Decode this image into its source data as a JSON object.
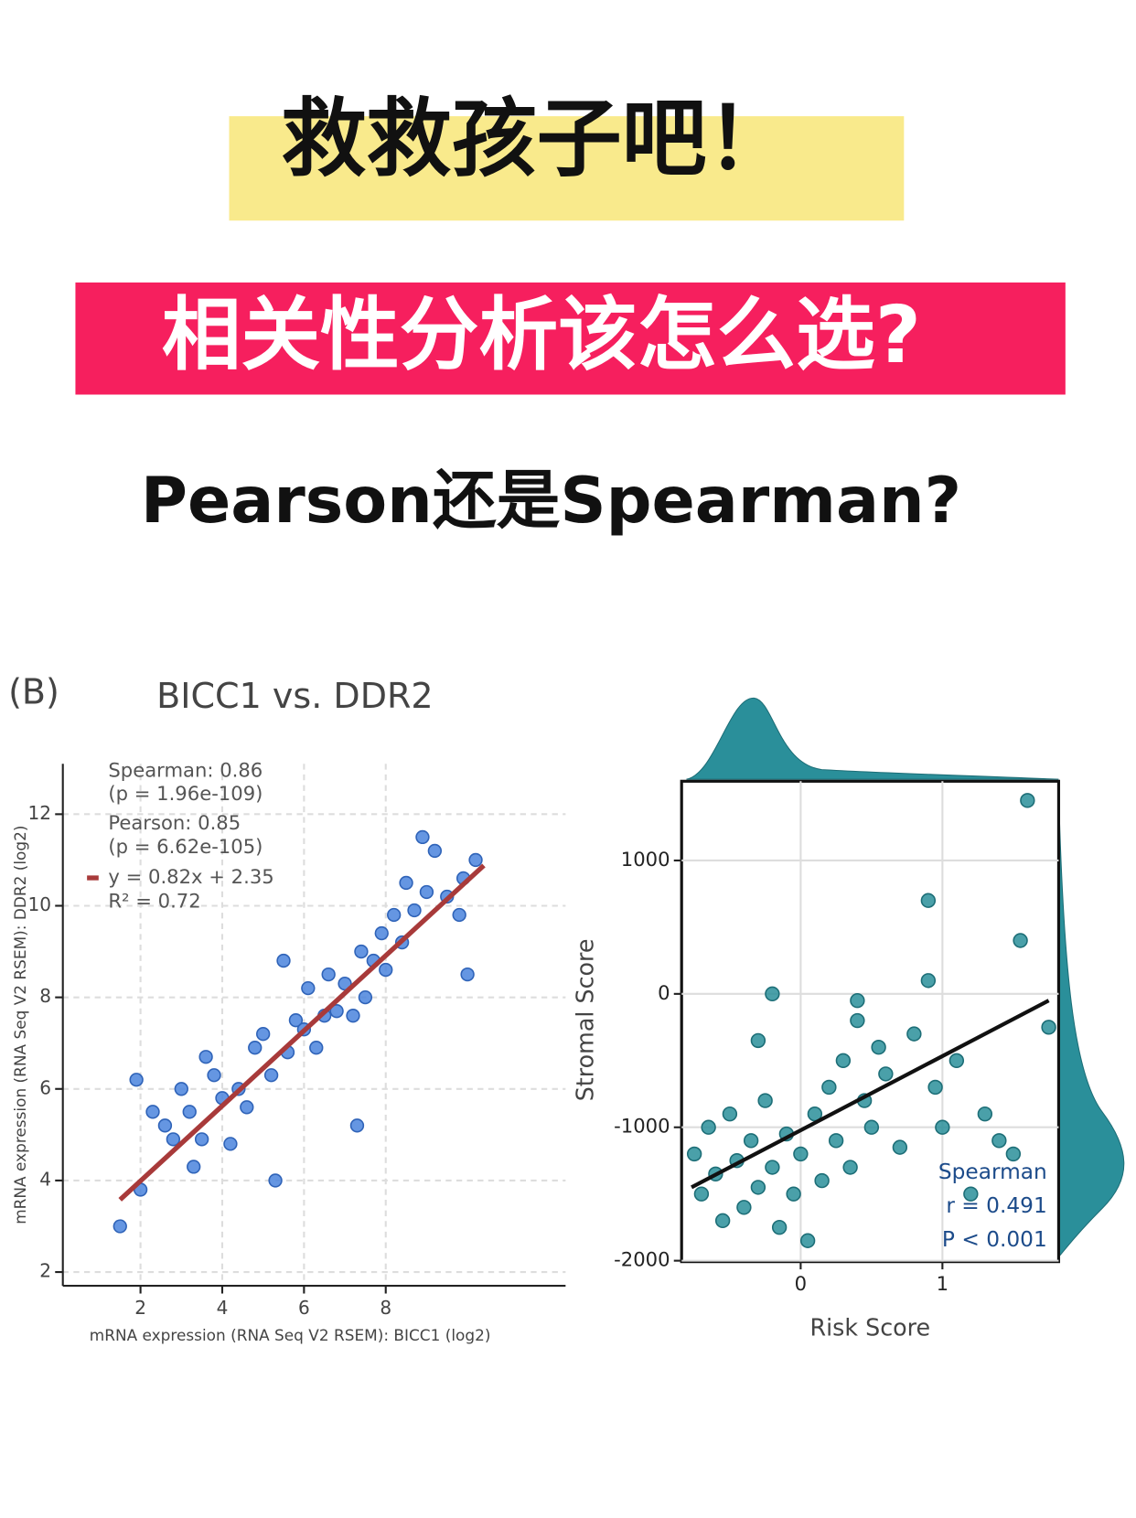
{
  "header": {
    "title": "救救孩子吧！",
    "subtitle": "相关性分析该怎么选?",
    "question": "Pearson还是Spearman?"
  },
  "chart_data": [
    {
      "type": "scatter",
      "panel": "(B)",
      "title": "BICC1 vs. DDR2",
      "x_label": "mRNA expression (RNA Seq V2 RSEM): BICC1 (log2)",
      "y_label": "mRNA expression (RNA Seq V2 RSEM): DDR2 (log2)",
      "annotations": [
        "Spearman: 0.86",
        "(p = 1.96e-109)",
        "Pearson: 0.85",
        "(p = 6.62e-105)",
        "y = 0.82x + 2.35",
        "R² = 0.72"
      ],
      "color": "#4a84dd",
      "x": [
        1.5,
        1.9,
        2.0,
        2.3,
        2.6,
        2.8,
        3.0,
        3.2,
        3.3,
        3.5,
        3.6,
        3.8,
        4.0,
        4.2,
        4.4,
        4.6,
        4.8,
        5.0,
        5.2,
        5.3,
        5.5,
        5.6,
        5.8,
        6.0,
        6.1,
        6.3,
        6.5,
        6.6,
        6.8,
        7.0,
        7.2,
        7.4,
        7.5,
        7.7,
        7.9,
        8.0,
        8.2,
        8.4,
        8.5,
        8.7,
        8.9,
        9.0,
        9.2,
        9.5,
        9.8,
        10.2,
        10.0,
        9.9,
        7.3
      ],
      "values": [
        3.0,
        6.2,
        3.8,
        5.5,
        5.2,
        4.9,
        6.0,
        5.5,
        4.3,
        4.9,
        6.7,
        6.3,
        5.8,
        4.8,
        6.0,
        5.6,
        6.9,
        7.2,
        6.3,
        4.0,
        8.8,
        6.8,
        7.5,
        7.3,
        8.2,
        6.9,
        7.6,
        8.5,
        7.7,
        8.3,
        7.6,
        9.0,
        8.0,
        8.8,
        9.4,
        8.6,
        9.8,
        9.2,
        10.5,
        9.9,
        11.5,
        10.3,
        11.2,
        10.2,
        9.8,
        11.0,
        8.5,
        10.6,
        5.2
      ],
      "fit": {
        "color": "#a83a3a",
        "x": [
          1.5,
          10.4
        ],
        "values": [
          3.58,
          10.88
        ]
      },
      "xlim": [
        0.1,
        12.4
      ],
      "xticks": [
        2,
        4,
        6,
        8
      ],
      "ylim": [
        1.7,
        13.1
      ],
      "yticks": [
        2,
        4,
        6,
        8,
        10,
        12
      ],
      "grid": true
    },
    {
      "type": "scatter",
      "title": null,
      "x_label": "Risk Score",
      "y_label": "Stromal Score",
      "annotations": [
        "Spearman",
        "r = 0.491",
        "P < 0.001"
      ],
      "color": "#2a8f9a",
      "x": [
        -0.75,
        -0.7,
        -0.65,
        -0.6,
        -0.55,
        -0.5,
        -0.45,
        -0.4,
        -0.35,
        -0.3,
        -0.25,
        -0.2,
        -0.15,
        -0.1,
        -0.05,
        0.0,
        0.05,
        0.1,
        0.15,
        0.2,
        0.25,
        0.3,
        0.35,
        0.4,
        0.45,
        0.5,
        0.55,
        0.6,
        0.7,
        0.8,
        0.9,
        0.95,
        1.0,
        1.1,
        1.2,
        1.3,
        1.4,
        1.5,
        1.55,
        1.6,
        1.75,
        -0.3,
        -0.2,
        0.4,
        0.9
      ],
      "values": [
        -1200,
        -1500,
        -1000,
        -1350,
        -1700,
        -900,
        -1250,
        -1600,
        -1100,
        -1450,
        -800,
        -1300,
        -1750,
        -1050,
        -1500,
        -1200,
        -1850,
        -900,
        -1400,
        -700,
        -1100,
        -500,
        -1300,
        -200,
        -800,
        -1000,
        -400,
        -600,
        -1150,
        -300,
        100,
        -700,
        -1000,
        -500,
        -1500,
        -900,
        -1100,
        -1200,
        400,
        1450,
        -250,
        -350,
        0,
        -50,
        700
      ],
      "fit": {
        "color": "#111111",
        "x": [
          -0.77,
          1.75
        ],
        "values": [
          -1450,
          -50
        ]
      },
      "xlim": [
        -0.84,
        1.82
      ],
      "xticks": [
        0,
        1
      ],
      "ylim": [
        -2007,
        1594
      ],
      "yticks": [
        -2000,
        -1000,
        0,
        1000
      ],
      "grid": true
    }
  ]
}
